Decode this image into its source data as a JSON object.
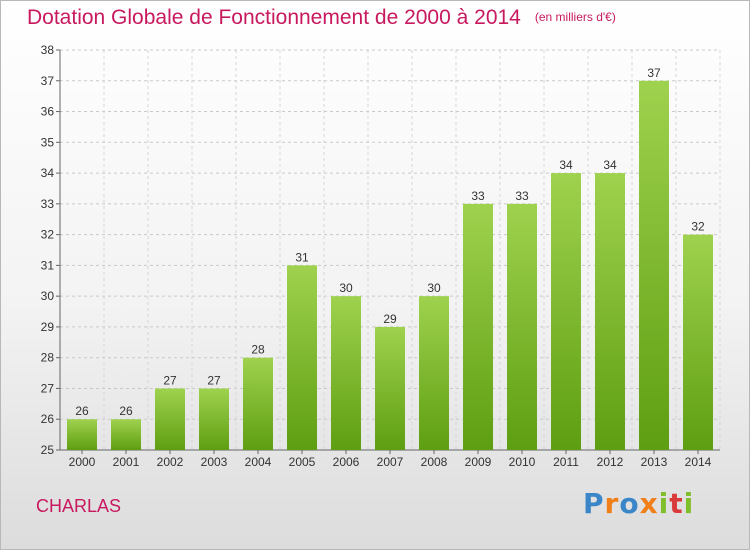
{
  "header": {
    "title": "Dotation Globale de Fonctionnement de 2000 à 2014",
    "unit": "(en milliers d'€)"
  },
  "footer": {
    "town": "CHARLAS",
    "logo": "Proxiti"
  },
  "colors": {
    "title": "#c8195f",
    "bar_light": "#9fd24e",
    "bar_dark": "#5e9e12",
    "logo": [
      "#3a86c8",
      "#f07f1a",
      "#3a86c8",
      "#f07f1a",
      "#7fbf2a",
      "#d93a3a",
      "#7fbf2a"
    ]
  },
  "chart_data": {
    "type": "bar",
    "categories": [
      "2000",
      "2001",
      "2002",
      "2003",
      "2004",
      "2005",
      "2006",
      "2007",
      "2008",
      "2009",
      "2010",
      "2011",
      "2012",
      "2013",
      "2014"
    ],
    "values": [
      26,
      26,
      27,
      27,
      28,
      31,
      30,
      29,
      30,
      33,
      33,
      34,
      34,
      37,
      32
    ],
    "ylim": [
      25,
      38
    ],
    "yticks": [
      25,
      26,
      27,
      28,
      29,
      30,
      31,
      32,
      33,
      34,
      35,
      36,
      37,
      38
    ],
    "title": "Dotation Globale de Fonctionnement de 2000 à 2014",
    "xlabel": "",
    "ylabel": "",
    "grid": true,
    "data_labels": true
  }
}
